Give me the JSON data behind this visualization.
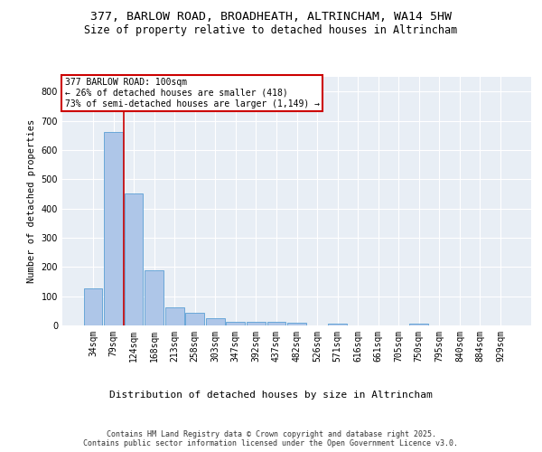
{
  "title_line1": "377, BARLOW ROAD, BROADHEATH, ALTRINCHAM, WA14 5HW",
  "title_line2": "Size of property relative to detached houses in Altrincham",
  "xlabel": "Distribution of detached houses by size in Altrincham",
  "ylabel": "Number of detached properties",
  "categories": [
    "34sqm",
    "79sqm",
    "124sqm",
    "168sqm",
    "213sqm",
    "258sqm",
    "303sqm",
    "347sqm",
    "392sqm",
    "437sqm",
    "482sqm",
    "526sqm",
    "571sqm",
    "616sqm",
    "661sqm",
    "705sqm",
    "750sqm",
    "795sqm",
    "840sqm",
    "884sqm",
    "929sqm"
  ],
  "values": [
    127,
    663,
    452,
    188,
    62,
    43,
    25,
    12,
    13,
    12,
    8,
    0,
    6,
    0,
    0,
    0,
    6,
    0,
    0,
    0,
    0
  ],
  "bar_color": "#aec6e8",
  "bar_edge_color": "#5a9fd4",
  "vline_x_index": 1,
  "vline_color": "#cc0000",
  "annotation_text": "377 BARLOW ROAD: 100sqm\n← 26% of detached houses are smaller (418)\n73% of semi-detached houses are larger (1,149) →",
  "annotation_box_facecolor": "#ffffff",
  "annotation_box_edgecolor": "#cc0000",
  "annotation_fontsize": 7,
  "ylim": [
    0,
    850
  ],
  "yticks": [
    0,
    100,
    200,
    300,
    400,
    500,
    600,
    700,
    800
  ],
  "background_color": "#e8eef5",
  "grid_color": "#ffffff",
  "footer_text": "Contains HM Land Registry data © Crown copyright and database right 2025.\nContains public sector information licensed under the Open Government Licence v3.0.",
  "title_fontsize": 9.5,
  "subtitle_fontsize": 8.5,
  "axis_label_fontsize": 8,
  "tick_fontsize": 7,
  "footer_fontsize": 6,
  "ylabel_fontsize": 7.5
}
